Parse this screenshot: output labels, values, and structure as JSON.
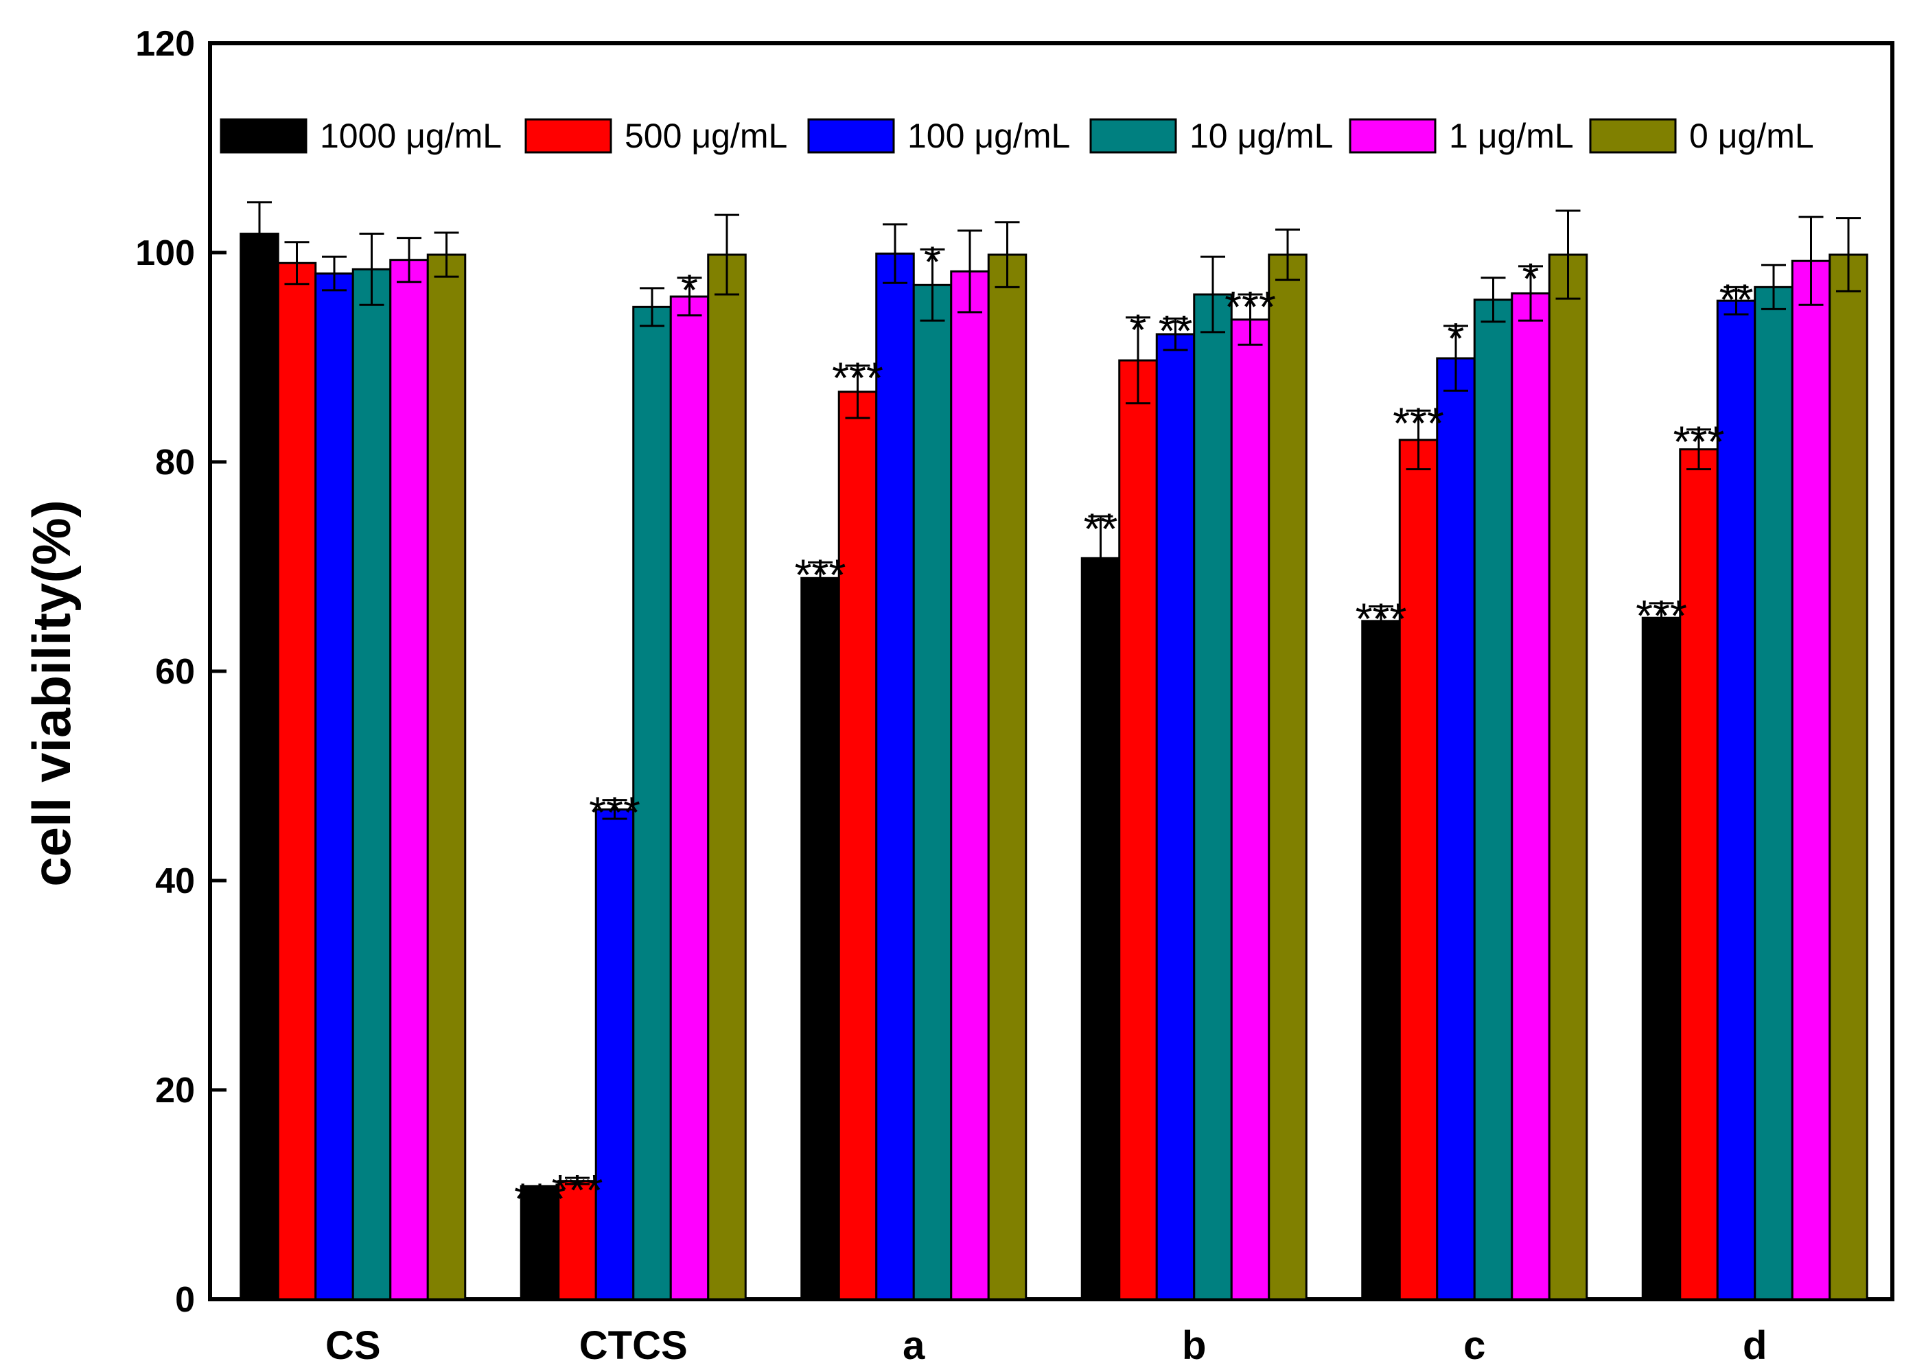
{
  "chart_data": {
    "type": "bar",
    "title": "",
    "xlabel": "",
    "ylabel": "cell viability(%)",
    "ylim": [
      0,
      120
    ],
    "yticks": [
      0,
      20,
      40,
      60,
      80,
      100,
      120
    ],
    "grid": false,
    "legend_position": "top",
    "categories": [
      "CS",
      "CTCS",
      "a",
      "b",
      "c",
      "d"
    ],
    "series": [
      {
        "name": "1000 μg/mL",
        "color": "#000000",
        "values": [
          101.8,
          10.8,
          68.9,
          70.8,
          64.8,
          65.1
        ],
        "errors": [
          3.0,
          0.0,
          1.5,
          4.0,
          1.4,
          1.4
        ],
        "significance": [
          "",
          "***",
          "***",
          "**",
          "***",
          "***"
        ]
      },
      {
        "name": "500 μg/mL",
        "color": "#ff0000",
        "values": [
          99.0,
          11.3,
          86.7,
          89.7,
          82.1,
          81.2
        ],
        "errors": [
          2.0,
          0.3,
          2.5,
          4.1,
          2.8,
          1.9
        ],
        "significance": [
          "",
          "***",
          "***",
          "*",
          "***",
          "***"
        ]
      },
      {
        "name": "100 μg/mL",
        "color": "#0000ff",
        "values": [
          98.0,
          46.8,
          99.9,
          92.2,
          89.9,
          95.4
        ],
        "errors": [
          1.6,
          0.9,
          2.8,
          1.5,
          3.1,
          1.3
        ],
        "significance": [
          "",
          "***",
          "",
          "**",
          "*",
          "**"
        ]
      },
      {
        "name": "10 μg/mL",
        "color": "#008080",
        "values": [
          98.4,
          94.8,
          96.9,
          96.0,
          95.5,
          96.7
        ],
        "errors": [
          3.4,
          1.8,
          3.4,
          3.6,
          2.1,
          2.1
        ],
        "significance": [
          "",
          "",
          "*",
          "",
          "",
          ""
        ]
      },
      {
        "name": "1 μg/mL",
        "color": "#ff00ff",
        "values": [
          99.3,
          95.8,
          98.2,
          93.6,
          96.1,
          99.2
        ],
        "errors": [
          2.1,
          1.8,
          3.9,
          2.4,
          2.6,
          4.2
        ],
        "significance": [
          "",
          "*",
          "",
          "***",
          "*",
          ""
        ]
      },
      {
        "name": "0 μg/mL",
        "color": "#808000",
        "values": [
          99.8,
          99.8,
          99.8,
          99.8,
          99.8,
          99.8
        ],
        "errors": [
          2.1,
          3.8,
          3.1,
          2.4,
          4.2,
          3.5
        ],
        "significance": [
          "",
          "",
          "",
          "",
          "",
          ""
        ]
      }
    ]
  }
}
